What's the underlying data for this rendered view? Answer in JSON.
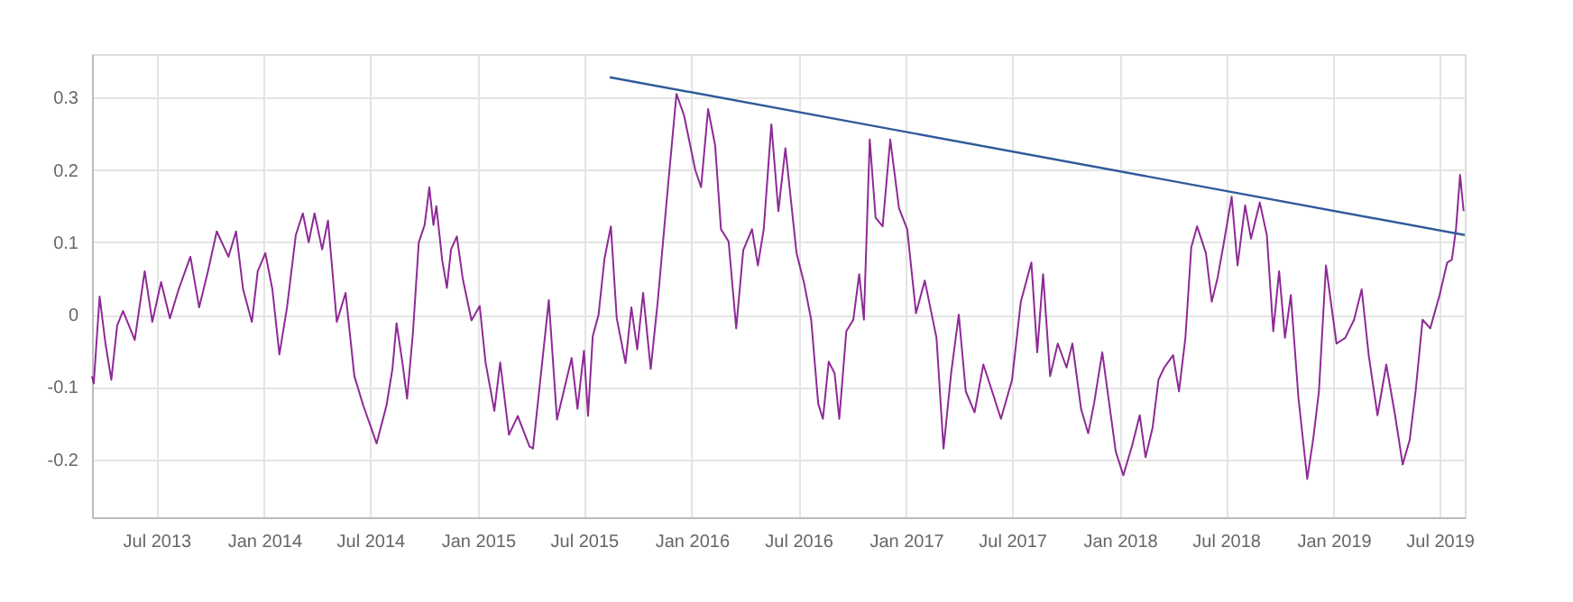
{
  "chart_data": {
    "type": "line",
    "xlim": [
      "2013-03-13",
      "2019-08-13"
    ],
    "ylim": [
      -0.28,
      0.36
    ],
    "yticks": [
      -0.2,
      -0.1,
      0,
      0.1,
      0.2,
      0.3
    ],
    "xticks": [
      {
        "value": "2013-07-01",
        "label": "Jul 2013"
      },
      {
        "value": "2014-01-01",
        "label": "Jan 2014"
      },
      {
        "value": "2014-07-01",
        "label": "Jul 2014"
      },
      {
        "value": "2015-01-01",
        "label": "Jan 2015"
      },
      {
        "value": "2015-07-01",
        "label": "Jul 2015"
      },
      {
        "value": "2016-01-01",
        "label": "Jan 2016"
      },
      {
        "value": "2016-07-01",
        "label": "Jul 2016"
      },
      {
        "value": "2017-01-01",
        "label": "Jan 2017"
      },
      {
        "value": "2017-07-01",
        "label": "Jul 2017"
      },
      {
        "value": "2018-01-01",
        "label": "Jan 2018"
      },
      {
        "value": "2018-07-01",
        "label": "Jul 2018"
      },
      {
        "value": "2019-01-01",
        "label": "Jan 2019"
      },
      {
        "value": "2019-07-01",
        "label": "Jul 2019"
      }
    ],
    "grid": true,
    "marker": "none",
    "line_style": "solid",
    "series": [
      {
        "color": "#8e2a96",
        "x": [
          "2013-03-13",
          "2013-03-16",
          "2013-03-26",
          "2013-04-05",
          "2013-04-15",
          "2013-04-25",
          "2013-05-05",
          "2013-05-25",
          "2013-06-11",
          "2013-06-24",
          "2013-07-09",
          "2013-07-24",
          "2013-08-08",
          "2013-08-28",
          "2013-09-12",
          "2013-09-27",
          "2013-10-12",
          "2013-11-01",
          "2013-11-14",
          "2013-11-26",
          "2013-12-11",
          "2013-12-21",
          "2014-01-03",
          "2014-01-15",
          "2014-01-27",
          "2014-02-09",
          "2014-02-24",
          "2014-03-08",
          "2014-03-18",
          "2014-03-28",
          "2014-04-10",
          "2014-04-20",
          "2014-05-05",
          "2014-05-20",
          "2014-06-04",
          "2014-06-19",
          "2014-07-12",
          "2014-07-29",
          "2014-08-08",
          "2014-08-15",
          "2014-08-25",
          "2014-09-02",
          "2014-09-12",
          "2014-09-22",
          "2014-10-02",
          "2014-10-10",
          "2014-10-17",
          "2014-10-22",
          "2014-11-01",
          "2014-11-09",
          "2014-11-16",
          "2014-11-26",
          "2014-12-06",
          "2014-12-21",
          "2015-01-04",
          "2015-01-14",
          "2015-01-29",
          "2015-02-08",
          "2015-02-23",
          "2015-03-10",
          "2015-03-30",
          "2015-04-05",
          "2015-05-02",
          "2015-05-16",
          "2015-06-10",
          "2015-06-20",
          "2015-07-01",
          "2015-07-08",
          "2015-07-16",
          "2015-07-26",
          "2015-08-05",
          "2015-08-16",
          "2015-08-26",
          "2015-09-10",
          "2015-09-20",
          "2015-09-30",
          "2015-10-10",
          "2015-10-23",
          "2015-11-04",
          "2015-11-19",
          "2015-12-06",
          "2015-12-19",
          "2016-01-07",
          "2016-01-17",
          "2016-01-29",
          "2016-02-10",
          "2016-02-20",
          "2016-03-04",
          "2016-03-17",
          "2016-03-29",
          "2016-04-13",
          "2016-04-23",
          "2016-05-03",
          "2016-05-16",
          "2016-05-28",
          "2016-06-09",
          "2016-06-28",
          "2016-07-11",
          "2016-07-23",
          "2016-08-04",
          "2016-08-12",
          "2016-08-22",
          "2016-09-01",
          "2016-09-09",
          "2016-09-21",
          "2016-10-03",
          "2016-10-13",
          "2016-10-21",
          "2016-10-31",
          "2016-11-10",
          "2016-11-22",
          "2016-12-05",
          "2016-12-20",
          "2017-01-03",
          "2017-01-18",
          "2017-02-02",
          "2017-02-22",
          "2017-03-06",
          "2017-03-19",
          "2017-04-01",
          "2017-04-13",
          "2017-04-28",
          "2017-05-13",
          "2017-05-28",
          "2017-06-12",
          "2017-07-01",
          "2017-07-16",
          "2017-08-03",
          "2017-08-13",
          "2017-08-23",
          "2017-09-04",
          "2017-09-17",
          "2017-10-02",
          "2017-10-12",
          "2017-10-27",
          "2017-11-08",
          "2017-11-18",
          "2017-12-02",
          "2017-12-17",
          "2017-12-25",
          "2018-01-07",
          "2018-01-22",
          "2018-02-04",
          "2018-02-14",
          "2018-02-26",
          "2018-03-08",
          "2018-03-18",
          "2018-04-02",
          "2018-04-12",
          "2018-04-23",
          "2018-05-03",
          "2018-05-13",
          "2018-05-28",
          "2018-06-07",
          "2018-06-17",
          "2018-06-28",
          "2018-07-11",
          "2018-07-21",
          "2018-08-03",
          "2018-08-13",
          "2018-08-28",
          "2018-09-09",
          "2018-09-20",
          "2018-09-30",
          "2018-10-10",
          "2018-10-20",
          "2018-11-02",
          "2018-11-17",
          "2018-11-27",
          "2018-12-07",
          "2018-12-19",
          "2019-01-06",
          "2019-01-21",
          "2019-02-05",
          "2019-02-18",
          "2019-03-02",
          "2019-03-17",
          "2019-04-01",
          "2019-04-16",
          "2019-04-29",
          "2019-05-11",
          "2019-05-21",
          "2019-06-02",
          "2019-06-15",
          "2019-07-01",
          "2019-07-14",
          "2019-07-22",
          "2019-07-29",
          "2019-08-05",
          "2019-08-11"
        ],
        "values": [
          -0.085,
          -0.095,
          0.025,
          -0.04,
          -0.09,
          -0.015,
          0.005,
          -0.035,
          0.06,
          -0.01,
          0.045,
          -0.005,
          0.035,
          0.08,
          0.01,
          0.06,
          0.115,
          0.08,
          0.115,
          0.035,
          -0.01,
          0.06,
          0.085,
          0.035,
          -0.055,
          0.01,
          0.11,
          0.14,
          0.1,
          0.14,
          0.09,
          0.13,
          -0.01,
          0.03,
          -0.085,
          -0.125,
          -0.178,
          -0.125,
          -0.075,
          -0.012,
          -0.066,
          -0.116,
          -0.025,
          0.1,
          0.124,
          0.176,
          0.124,
          0.15,
          0.075,
          0.037,
          0.09,
          0.108,
          0.05,
          -0.008,
          0.012,
          -0.066,
          -0.133,
          -0.066,
          -0.166,
          -0.14,
          -0.182,
          -0.185,
          0.02,
          -0.145,
          -0.06,
          -0.13,
          -0.05,
          -0.14,
          -0.03,
          0.0,
          0.077,
          0.122,
          -0.005,
          -0.067,
          0.01,
          -0.048,
          0.03,
          -0.075,
          0.018,
          0.155,
          0.305,
          0.275,
          0.2,
          0.176,
          0.284,
          0.234,
          0.118,
          0.101,
          -0.019,
          0.089,
          0.118,
          0.068,
          0.118,
          0.263,
          0.143,
          0.23,
          0.085,
          0.043,
          -0.007,
          -0.123,
          -0.144,
          -0.065,
          -0.081,
          -0.144,
          -0.023,
          -0.007,
          0.056,
          -0.007,
          0.242,
          0.134,
          0.122,
          0.242,
          0.147,
          0.118,
          0.002,
          0.047,
          -0.032,
          -0.185,
          -0.081,
          0.0,
          -0.106,
          -0.135,
          -0.069,
          -0.106,
          -0.144,
          -0.09,
          0.018,
          0.072,
          -0.052,
          0.056,
          -0.085,
          -0.04,
          -0.073,
          -0.04,
          -0.131,
          -0.164,
          -0.123,
          -0.052,
          -0.141,
          -0.189,
          -0.222,
          -0.181,
          -0.139,
          -0.197,
          -0.156,
          -0.09,
          -0.073,
          -0.056,
          -0.106,
          -0.032,
          0.093,
          0.122,
          0.085,
          0.018,
          0.051,
          0.101,
          0.163,
          0.068,
          0.151,
          0.105,
          0.155,
          0.11,
          -0.023,
          0.06,
          -0.032,
          0.027,
          -0.115,
          -0.227,
          -0.173,
          -0.106,
          0.068,
          -0.04,
          -0.032,
          -0.007,
          0.035,
          -0.056,
          -0.139,
          -0.069,
          -0.139,
          -0.207,
          -0.173,
          -0.106,
          -0.007,
          -0.019,
          0.027,
          0.072,
          0.076,
          0.118,
          0.193,
          0.143
        ]
      },
      {
        "type": "line",
        "color": "#2f5a9a",
        "x": [
          "2015-08-14",
          "2019-08-13"
        ],
        "values": [
          0.328,
          0.11
        ]
      }
    ]
  }
}
